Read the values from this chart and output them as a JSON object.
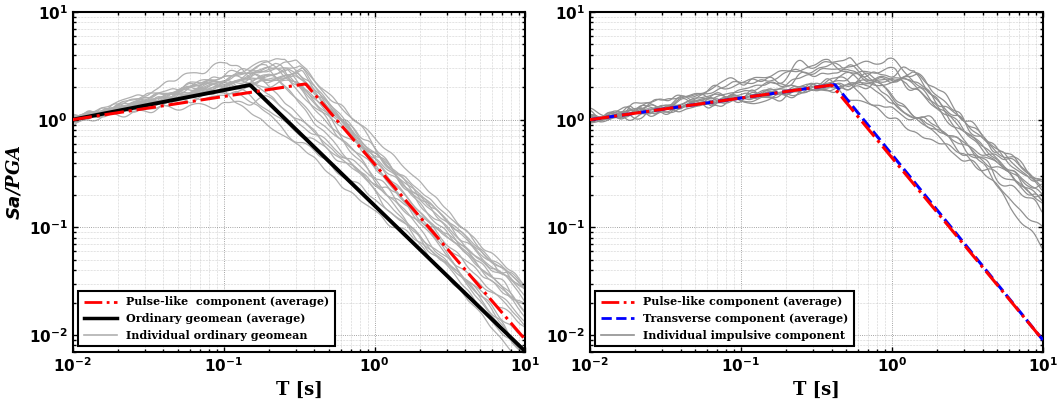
{
  "xlim": [
    0.01,
    10
  ],
  "ylim": [
    0.007,
    4.0
  ],
  "xlabel": "T [s]",
  "ylabel": "Sa/PGA",
  "background_color": "#ffffff",
  "grid_color": "#999999",
  "left_legend_labels": [
    "Pulse-like  component (average)",
    "Ordinary geomean (average)",
    "Individual ordinary geomean"
  ],
  "right_legend_labels": [
    "Pulse-like component (average)",
    "Transverse component (average)",
    "Individual impulsive component"
  ],
  "num_ordinary": 22,
  "num_impulsive": 14
}
